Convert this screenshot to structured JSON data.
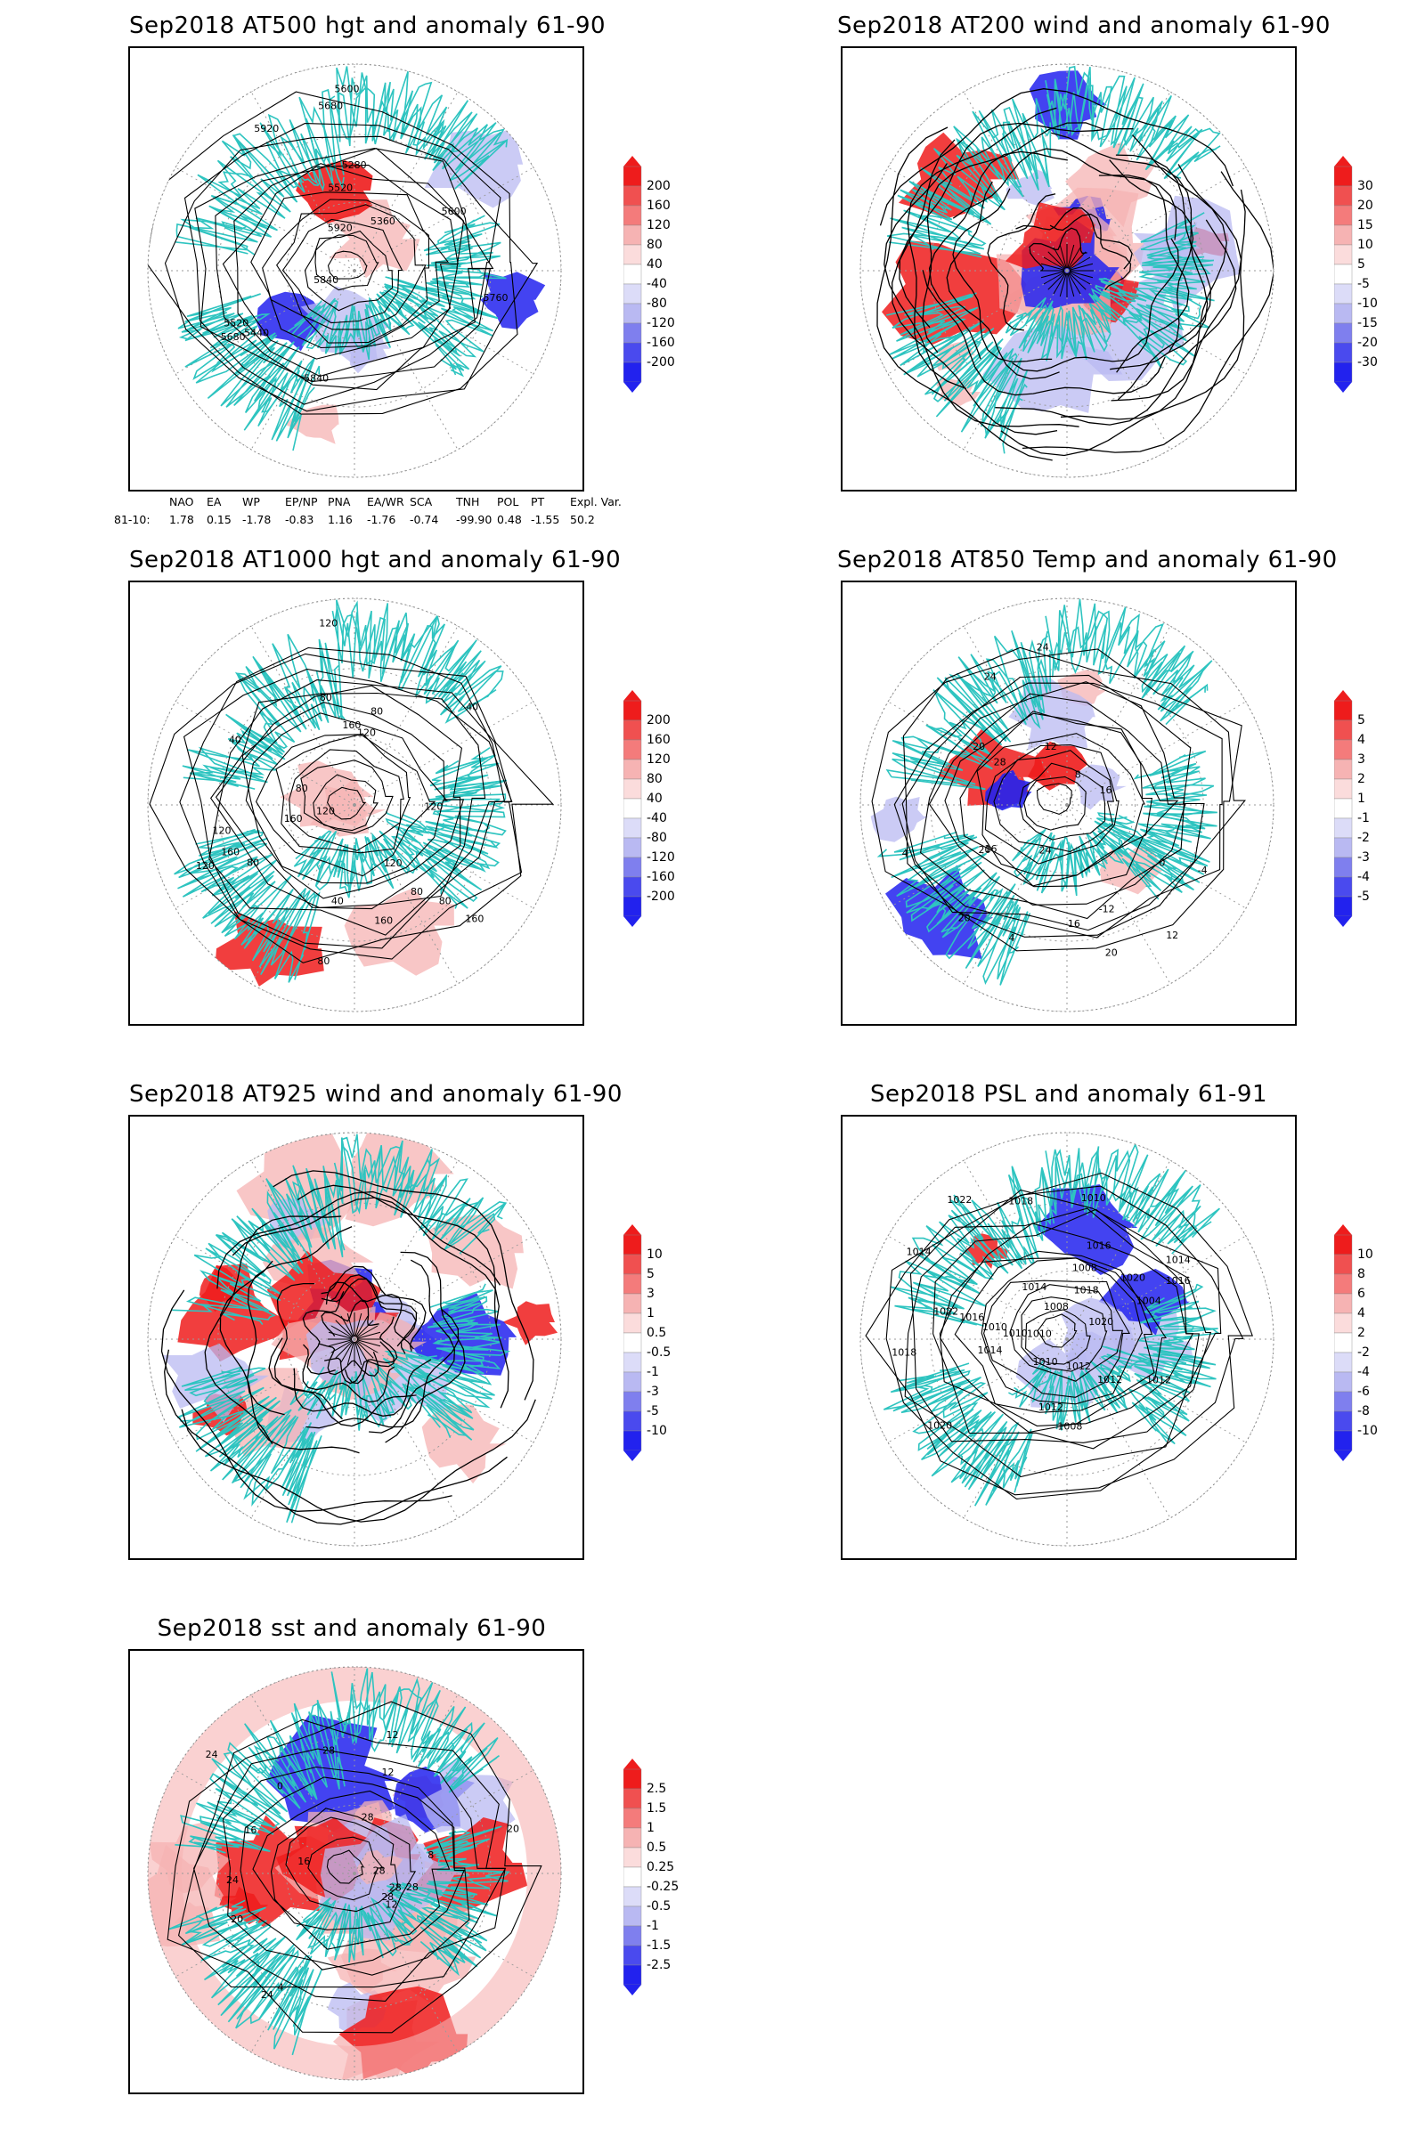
{
  "panels": [
    {
      "id": "p500",
      "title": "Sep2018 AT500 hgt and anomaly 61-90",
      "kind": "contour",
      "colorbar": [
        "200",
        "160",
        "120",
        "80",
        "40",
        "-40",
        "-80",
        "-120",
        "-160",
        "-200"
      ],
      "contour_labels": [
        "5920",
        "5840",
        "5680",
        "5600",
        "5520",
        "5600",
        "5520",
        "5280",
        "5360",
        "5440",
        "5680",
        "5760",
        "5840",
        "5920"
      ],
      "anomaly_spots": [
        {
          "sign": "pos",
          "strength": 1.0
        },
        {
          "sign": "pos",
          "strength": 0.35
        },
        {
          "sign": "neg",
          "strength": 0.2
        }
      ]
    },
    {
      "id": "p200",
      "title": "Sep2018 AT200 wind and anomaly 61-90",
      "kind": "stream",
      "colorbar": [
        "30",
        "20",
        "15",
        "10",
        "5",
        "-5",
        "-10",
        "-15",
        "-20",
        "-30"
      ],
      "contour_labels": []
    },
    {
      "id": "p1000",
      "title": "Sep2018 AT1000 hgt and anomaly 61-90",
      "kind": "contour",
      "colorbar": [
        "200",
        "160",
        "120",
        "80",
        "40",
        "-40",
        "-80",
        "-120",
        "-160",
        "-200"
      ],
      "contour_labels": [
        "80",
        "80",
        "160",
        "120",
        "120",
        "80",
        "120",
        "160",
        "120",
        "40",
        "40",
        "160",
        "120",
        "80",
        "160",
        "80",
        "40",
        "160",
        "120",
        "80",
        "80",
        "120"
      ]
    },
    {
      "id": "p850",
      "title": "Sep2018 AT850 Temp and anomaly 61-90",
      "kind": "contour",
      "colorbar": [
        "5",
        "4",
        "3",
        "2",
        "1",
        "-1",
        "-2",
        "-3",
        "-4",
        "-5"
      ],
      "contour_labels": [
        "16",
        "16",
        "12",
        "20",
        "24",
        "4",
        "0",
        "-4",
        "-12",
        "4",
        "8",
        "12",
        "16",
        "20",
        "24",
        "24",
        "20",
        "20",
        "28"
      ]
    },
    {
      "id": "p925",
      "title": "Sep2018 AT925 wind and anomaly 61-90",
      "kind": "stream",
      "colorbar": [
        "10",
        "5",
        "3",
        "1",
        "0.5",
        "-0.5",
        "-1",
        "-3",
        "-5",
        "-10"
      ],
      "contour_labels": []
    },
    {
      "id": "psl",
      "title": "Sep2018 PSL and anomaly 61-91",
      "kind": "contour",
      "colorbar": [
        "10",
        "8",
        "6",
        "4",
        "2",
        "-2",
        "-4",
        "-6",
        "-8",
        "-10"
      ],
      "contour_labels": [
        "1010",
        "1014",
        "1016",
        "1016",
        "1012",
        "1018",
        "1022",
        "1020",
        "1014",
        "1012",
        "1008",
        "1008",
        "1010",
        "1018",
        "1014",
        "1016",
        "1020",
        "1010",
        "1010",
        "1004",
        "1008",
        "1020",
        "1018",
        "1022",
        "1012",
        "1014",
        "1010",
        "1012"
      ]
    },
    {
      "id": "sst",
      "title": "Sep2018 sst and anomaly 61-90",
      "kind": "sst",
      "colorbar": [
        "2.5",
        "1.5",
        "1",
        "0.5",
        "0.25",
        "-0.25",
        "-0.5",
        "-1",
        "-1.5",
        "-2.5"
      ],
      "contour_labels": [
        "28",
        "28",
        "24",
        "24",
        "20",
        "16",
        "12",
        "12",
        "28",
        "20",
        "8",
        "4",
        "0",
        "12",
        "28",
        "28",
        "24",
        "16",
        "28"
      ]
    }
  ],
  "teleconnection": {
    "headers": [
      "NAO",
      "EA",
      "WP",
      "EP/NP",
      "PNA",
      "EA/WR",
      "SCA",
      "TNH",
      "POL",
      "PT",
      "Expl. Var."
    ],
    "row_label": "81-10:",
    "values": [
      "1.78",
      "0.15",
      "-1.78",
      "-0.83",
      "1.16",
      "-1.76",
      "-0.74",
      "-99.90",
      "0.48",
      "-1.55",
      "50.2"
    ]
  },
  "colors": {
    "coastline": "#2ec4c0",
    "contour": "#000000",
    "grid": "#9a9a9a",
    "pos_strong": "#ee1c1c",
    "pos_weak": "#f6b3b3",
    "neg_strong": "#2222ee",
    "neg_weak": "#b9b9f2"
  }
}
